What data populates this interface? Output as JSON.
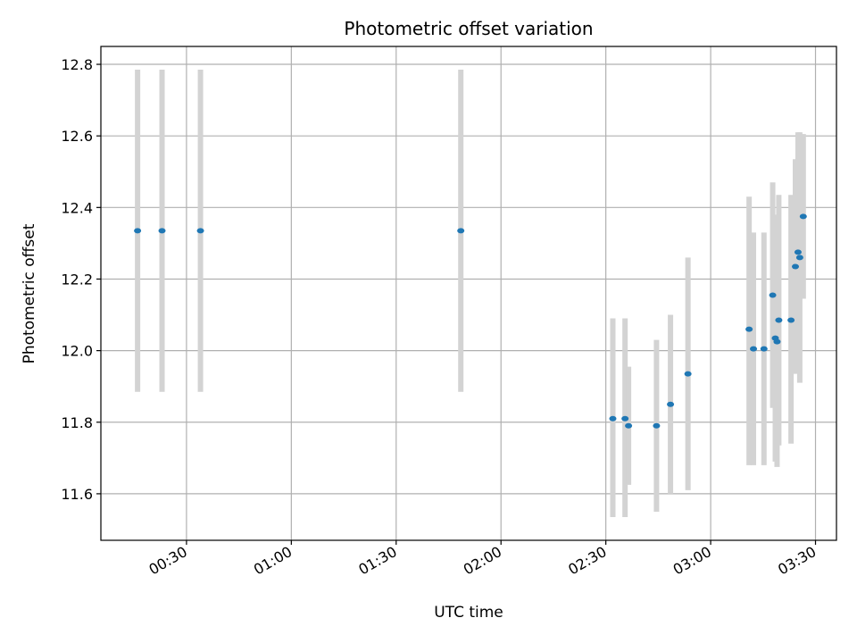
{
  "chart_data": {
    "type": "scatter",
    "title": "Photometric offset variation",
    "xlabel": "UTC time",
    "ylabel": "Photometric offset",
    "x_ticks": [
      "00:30",
      "01:00",
      "01:30",
      "02:00",
      "02:30",
      "03:00",
      "03:30"
    ],
    "y_ticks": [
      "11.6",
      "11.8",
      "12.0",
      "12.2",
      "12.4",
      "12.6",
      "12.8"
    ],
    "xlim": [
      "00:05:30",
      "03:36:00"
    ],
    "ylim": [
      11.47,
      12.85
    ],
    "grid": true,
    "errorbar_color": "#d3d3d3",
    "marker_color": "#1f77b4",
    "points": [
      {
        "t": "00:16:00",
        "y": 12.335,
        "lo": 11.885,
        "hi": 12.785
      },
      {
        "t": "00:23:00",
        "y": 12.335,
        "lo": 11.885,
        "hi": 12.785
      },
      {
        "t": "00:34:00",
        "y": 12.335,
        "lo": 11.885,
        "hi": 12.785
      },
      {
        "t": "01:48:30",
        "y": 12.335,
        "lo": 11.885,
        "hi": 12.785
      },
      {
        "t": "02:32:00",
        "y": 11.81,
        "lo": 11.535,
        "hi": 12.09
      },
      {
        "t": "02:35:30",
        "y": 11.81,
        "lo": 11.535,
        "hi": 12.09
      },
      {
        "t": "02:36:30",
        "y": 11.79,
        "lo": 11.625,
        "hi": 11.955
      },
      {
        "t": "02:44:30",
        "y": 11.79,
        "lo": 11.55,
        "hi": 12.03
      },
      {
        "t": "02:48:30",
        "y": 11.85,
        "lo": 11.6,
        "hi": 12.1
      },
      {
        "t": "02:53:30",
        "y": 11.935,
        "lo": 11.61,
        "hi": 12.26
      },
      {
        "t": "03:11:00",
        "y": 12.06,
        "lo": 11.68,
        "hi": 12.43
      },
      {
        "t": "03:12:15",
        "y": 12.005,
        "lo": 11.68,
        "hi": 12.33
      },
      {
        "t": "03:15:15",
        "y": 12.005,
        "lo": 11.68,
        "hi": 12.33
      },
      {
        "t": "03:17:45",
        "y": 12.155,
        "lo": 11.84,
        "hi": 12.47
      },
      {
        "t": "03:18:30",
        "y": 12.035,
        "lo": 11.69,
        "hi": 12.38
      },
      {
        "t": "03:19:00",
        "y": 12.025,
        "lo": 11.675,
        "hi": 12.375
      },
      {
        "t": "03:19:30",
        "y": 12.085,
        "lo": 11.735,
        "hi": 12.435
      },
      {
        "t": "03:23:00",
        "y": 12.085,
        "lo": 11.74,
        "hi": 12.435
      },
      {
        "t": "03:24:15",
        "y": 12.235,
        "lo": 11.935,
        "hi": 12.535
      },
      {
        "t": "03:25:00",
        "y": 12.275,
        "lo": 11.94,
        "hi": 12.61
      },
      {
        "t": "03:25:30",
        "y": 12.26,
        "lo": 11.91,
        "hi": 12.61
      },
      {
        "t": "03:26:30",
        "y": 12.375,
        "lo": 12.145,
        "hi": 12.605
      }
    ]
  }
}
